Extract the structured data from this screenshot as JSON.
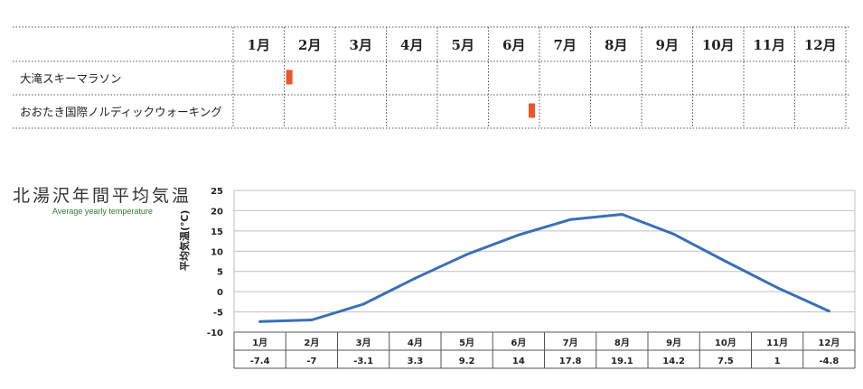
{
  "events": {
    "months": [
      "1月",
      "2月",
      "3月",
      "4月",
      "5月",
      "6月",
      "7月",
      "8月",
      "9月",
      "10月",
      "11月",
      "12月"
    ],
    "rows": [
      {
        "name": "大滝スキーマラソン",
        "month": 2,
        "pos": 0.1
      },
      {
        "name": "おおたき国際ノルディックウォーキング",
        "month": 6,
        "pos": 0.85
      }
    ],
    "marker_color": "#e8572a"
  },
  "chart_data": {
    "type": "line",
    "title": "北湯沢年間平均気温",
    "subtitle": "Average yearly temperature",
    "ylabel": "平均気温(℃)",
    "xlabel": "",
    "categories": [
      "1月",
      "2月",
      "3月",
      "4月",
      "5月",
      "6月",
      "7月",
      "8月",
      "9月",
      "10月",
      "11月",
      "12月"
    ],
    "series": [
      {
        "values": [
          -7.4,
          -7,
          -3.1,
          3.3,
          9.2,
          14,
          17.8,
          19.1,
          14.2,
          7.5,
          1,
          -4.8
        ]
      }
    ],
    "table_values": [
      "-7.4",
      "-7",
      "-3.1",
      "3.3",
      "9.2",
      "14",
      "17.8",
      "19.1",
      "14.2",
      "7.5",
      "1",
      "-4.8"
    ],
    "ylim": [
      -10,
      25
    ],
    "yticks": [
      25,
      20,
      15,
      10,
      5,
      0,
      -5,
      -10
    ],
    "grid": true,
    "line_color": "#3a6fb7"
  }
}
